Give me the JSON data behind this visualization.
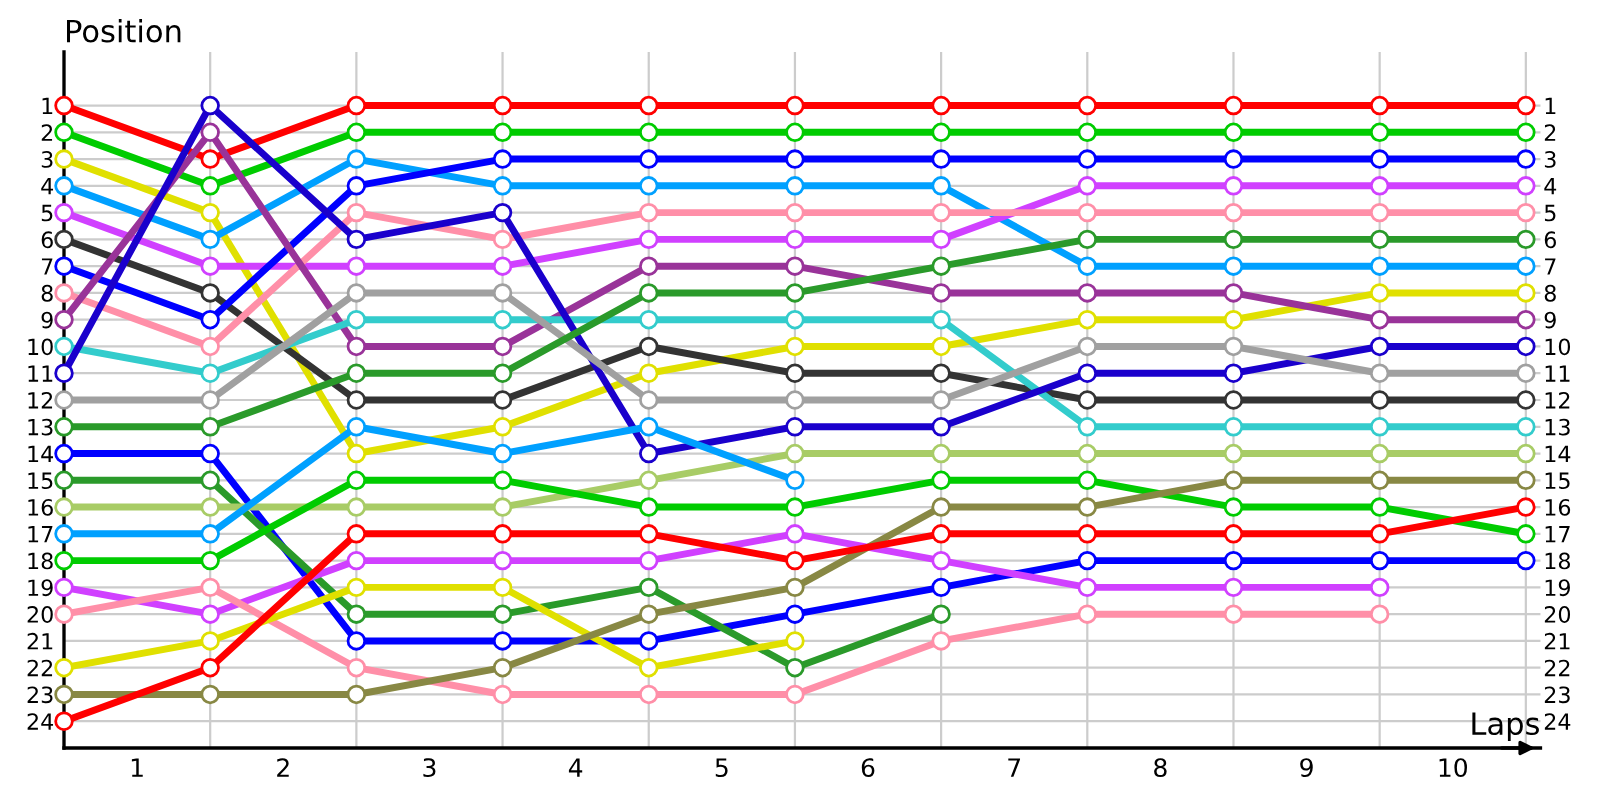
{
  "chart_data": {
    "type": "line",
    "xlabel": "Laps",
    "ylabel": "Position",
    "x": [
      0,
      1,
      2,
      3,
      4,
      5,
      6,
      7,
      8,
      9,
      10
    ],
    "xlim": [
      0,
      10.1
    ],
    "ylim": [
      25,
      -1
    ],
    "xticks": [
      {
        "value": 0.5,
        "label": "1"
      },
      {
        "value": 1.5,
        "label": "2"
      },
      {
        "value": 2.5,
        "label": "3"
      },
      {
        "value": 3.5,
        "label": "4"
      },
      {
        "value": 4.5,
        "label": "5"
      },
      {
        "value": 5.5,
        "label": "6"
      },
      {
        "value": 6.5,
        "label": "7"
      },
      {
        "value": 7.5,
        "label": "8"
      },
      {
        "value": 8.5,
        "label": "9"
      },
      {
        "value": 9.5,
        "label": "10"
      }
    ],
    "yticks": [
      1,
      2,
      3,
      4,
      5,
      6,
      7,
      8,
      9,
      10,
      11,
      12,
      13,
      14,
      15,
      16,
      17,
      18,
      19,
      20,
      21,
      22,
      23,
      24
    ],
    "y2lim": [
      25,
      -1
    ],
    "y2ticks": [
      1,
      2,
      3,
      4,
      5,
      6,
      7,
      8,
      9,
      10,
      11,
      12,
      13,
      14,
      15,
      16,
      17,
      18,
      19,
      20,
      21,
      22,
      23,
      24
    ],
    "grid": true,
    "marker": "circle",
    "line_style": "solid",
    "legend": false,
    "series": [
      {
        "color": "#ff0000",
        "values": [
          1,
          3,
          1,
          1,
          1,
          1,
          1,
          1,
          1,
          1,
          1
        ]
      },
      {
        "color": "#00cc00",
        "values": [
          2,
          4,
          2,
          2,
          2,
          2,
          2,
          2,
          2,
          2,
          2
        ]
      },
      {
        "color": "#e0e000",
        "values": [
          3,
          5,
          14,
          13,
          11,
          10,
          10,
          9,
          9,
          8,
          8
        ]
      },
      {
        "color": "#00a0ff",
        "values": [
          4,
          6,
          3,
          4,
          4,
          4,
          4,
          7,
          7,
          7,
          7
        ]
      },
      {
        "color": "#d040ff",
        "values": [
          5,
          7,
          7,
          7,
          6,
          6,
          6,
          4,
          4,
          4,
          4
        ]
      },
      {
        "color": "#333333",
        "values": [
          6,
          8,
          12,
          12,
          10,
          11,
          11,
          12,
          12,
          12,
          12
        ]
      },
      {
        "color": "#0000ff",
        "values": [
          7,
          9,
          4,
          3,
          3,
          3,
          3,
          3,
          3,
          3,
          3
        ]
      },
      {
        "color": "#ff8fa8",
        "values": [
          8,
          10,
          5,
          6,
          5,
          5,
          5,
          5,
          5,
          5,
          5
        ]
      },
      {
        "color": "#993399",
        "values": [
          9,
          2,
          10,
          10,
          7,
          7,
          8,
          8,
          8,
          9,
          9
        ]
      },
      {
        "color": "#33cccc",
        "values": [
          10,
          11,
          9,
          9,
          9,
          9,
          9,
          13,
          13,
          13,
          13
        ]
      },
      {
        "color": "#1a00cc",
        "values": [
          11,
          1,
          6,
          5,
          14,
          13,
          13,
          11,
          11,
          10,
          10
        ]
      },
      {
        "color": "#a0a0a0",
        "values": [
          12,
          12,
          8,
          8,
          12,
          12,
          12,
          10,
          10,
          11,
          11
        ]
      },
      {
        "color": "#2a9a2a",
        "values": [
          13,
          13,
          11,
          11,
          8,
          8,
          7,
          6,
          6,
          6,
          6
        ]
      },
      {
        "color": "#0000ff",
        "values": [
          14,
          14,
          21,
          21,
          21,
          20,
          19,
          18,
          18,
          18,
          18
        ]
      },
      {
        "color": "#2a9a2a",
        "values": [
          15,
          15,
          20,
          20,
          19,
          22,
          20,
          null,
          null,
          null,
          null
        ]
      },
      {
        "color": "#a8cc66",
        "values": [
          16,
          16,
          16,
          16,
          15,
          14,
          14,
          14,
          14,
          14,
          14
        ]
      },
      {
        "color": "#00a0ff",
        "values": [
          17,
          17,
          13,
          14,
          13,
          15,
          null,
          null,
          null,
          null,
          null
        ]
      },
      {
        "color": "#00cc00",
        "values": [
          18,
          18,
          15,
          15,
          16,
          16,
          15,
          15,
          16,
          16,
          17
        ]
      },
      {
        "color": "#d040ff",
        "values": [
          19,
          20,
          18,
          18,
          18,
          17,
          18,
          19,
          19,
          19,
          null
        ]
      },
      {
        "color": "#ff8fa8",
        "values": [
          20,
          19,
          22,
          23,
          23,
          23,
          21,
          20,
          20,
          20,
          null
        ]
      },
      {
        "color": "#e0e000",
        "values": [
          22,
          21,
          19,
          19,
          22,
          21,
          null,
          null,
          null,
          null,
          null
        ]
      },
      {
        "color": "#888844",
        "values": [
          23,
          23,
          23,
          22,
          20,
          19,
          16,
          16,
          15,
          15,
          15
        ]
      },
      {
        "color": "#ff0000",
        "values": [
          24,
          22,
          17,
          17,
          17,
          18,
          17,
          17,
          17,
          17,
          16
        ]
      }
    ]
  }
}
